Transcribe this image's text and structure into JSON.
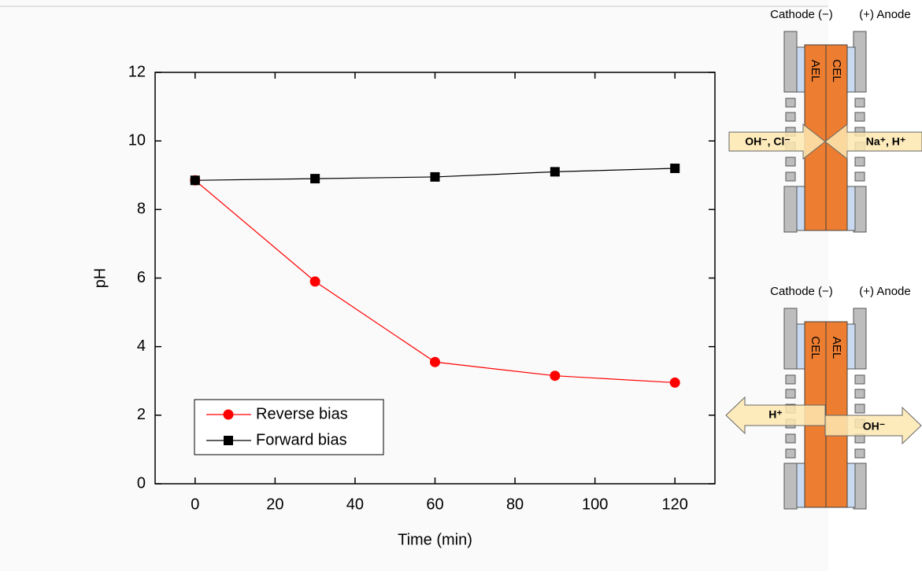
{
  "chart_data": {
    "type": "line",
    "xlabel": "Time (min)",
    "ylabel": "pH",
    "x": [
      0,
      30,
      60,
      90,
      120
    ],
    "series": [
      {
        "name": "Reverse bias",
        "color": "#ff0000",
        "marker": "circle",
        "values": [
          8.85,
          5.9,
          3.55,
          3.15,
          2.95
        ]
      },
      {
        "name": "Forward bias",
        "color": "#000000",
        "marker": "square",
        "values": [
          8.85,
          8.9,
          8.95,
          9.1,
          9.2
        ]
      }
    ],
    "xlim": [
      -10,
      130
    ],
    "xticks": [
      0,
      20,
      40,
      60,
      80,
      100,
      120
    ],
    "ylim": [
      0,
      12
    ],
    "yticks": [
      0,
      2,
      4,
      6,
      8,
      10,
      12
    ],
    "legend": "lower left"
  },
  "diagrams": [
    {
      "cathode": "Cathode (−)",
      "anode": "(+) Anode",
      "left_membrane": "AEL",
      "right_membrane": "CEL",
      "left_ions": "OH⁻, Cl⁻",
      "right_ions": "Na⁺, H⁺"
    },
    {
      "cathode": "Cathode (−)",
      "anode": "(+) Anode",
      "left_membrane": "CEL",
      "right_membrane": "AEL",
      "left_ions": "H⁺",
      "right_ions": "OH⁻"
    }
  ]
}
